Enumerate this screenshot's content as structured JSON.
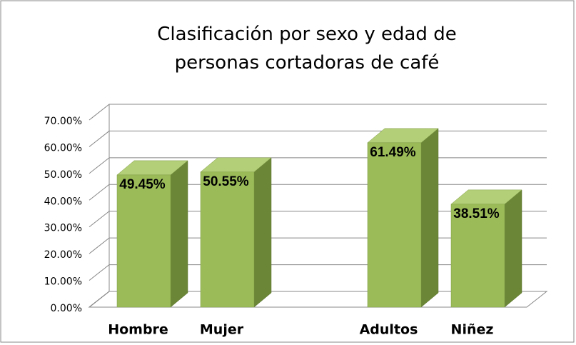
{
  "chart_data": {
    "type": "bar3d",
    "title": "Clasificación por sexo y edad de personas cortadoras de café",
    "categories": [
      "Hombre",
      "Mujer",
      null,
      "Adultos",
      "Niñez"
    ],
    "values": [
      49.45,
      50.55,
      null,
      61.49,
      38.51
    ],
    "value_labels": [
      "49.45%",
      "50.55%",
      null,
      "61.49%",
      "38.51%"
    ],
    "color": "#9bbb59",
    "ylim": [
      0,
      70
    ],
    "yticks": [
      {
        "value": 0,
        "label": "0.00%"
      },
      {
        "value": 10,
        "label": "10.00%"
      },
      {
        "value": 20,
        "label": "20.00%"
      },
      {
        "value": 30,
        "label": "30.00%"
      },
      {
        "value": 40,
        "label": "40.00%"
      },
      {
        "value": 50,
        "label": "50.00%"
      },
      {
        "value": 60,
        "label": "60.00%"
      },
      {
        "value": 70,
        "label": "70.00%"
      }
    ],
    "grid": true
  }
}
